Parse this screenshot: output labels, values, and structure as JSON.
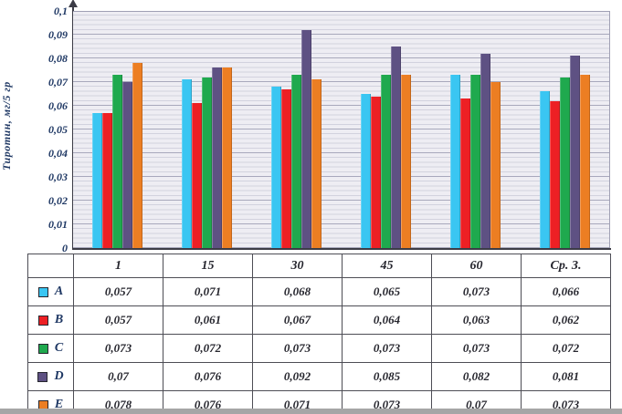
{
  "chart_data": {
    "type": "bar",
    "title": "",
    "ylabel": "Тиротин, мг/5 гр",
    "xlabel": "",
    "ylim": [
      0,
      0.1
    ],
    "y_tick_labels": [
      "0",
      "0,01",
      "0,02",
      "0,03",
      "0,04",
      "0,05",
      "0,06",
      "0,07",
      "0,08",
      "0,09",
      "0,1"
    ],
    "grid": "horizontal-major-and-minor",
    "legend_position": "table-rows-left",
    "categories": [
      "1",
      "15",
      "30",
      "45",
      "60",
      "Ср. З."
    ],
    "series": [
      {
        "name": "A",
        "color": "#3AC6F2",
        "values": [
          0.057,
          0.071,
          0.068,
          0.065,
          0.073,
          0.066
        ],
        "display": [
          "0,057",
          "0,071",
          "0,068",
          "0,065",
          "0,073",
          "0,066"
        ]
      },
      {
        "name": "B",
        "color": "#ED2024",
        "values": [
          0.057,
          0.061,
          0.067,
          0.064,
          0.063,
          0.062
        ],
        "display": [
          "0,057",
          "0,061",
          "0,067",
          "0,064",
          "0,063",
          "0,062"
        ]
      },
      {
        "name": "C",
        "color": "#1FA94E",
        "values": [
          0.073,
          0.072,
          0.073,
          0.073,
          0.073,
          0.072
        ],
        "display": [
          "0,073",
          "0,072",
          "0,073",
          "0,073",
          "0,073",
          "0,072"
        ]
      },
      {
        "name": "D",
        "color": "#5E5183",
        "values": [
          0.07,
          0.076,
          0.092,
          0.085,
          0.082,
          0.081
        ],
        "display": [
          "0,07",
          "0,076",
          "0,092",
          "0,085",
          "0,082",
          "0,081"
        ]
      },
      {
        "name": "E",
        "color": "#EC7E23",
        "values": [
          0.078,
          0.076,
          0.071,
          0.073,
          0.07,
          0.073
        ],
        "display": [
          "0,078",
          "0,076",
          "0,071",
          "0,073",
          "0,07",
          "0,073"
        ]
      }
    ]
  }
}
